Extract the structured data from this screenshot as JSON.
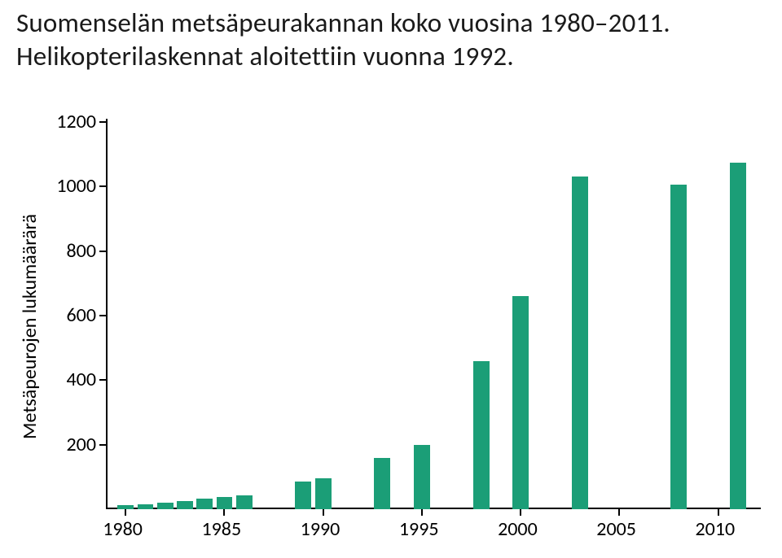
{
  "title_line1": "Suomenselän metsäpeurakannan koko vuosina 1980–2011.",
  "title_line2": "Helikopterilaskennat aloitettiin vuonna 1992.",
  "chart": {
    "type": "bar",
    "ylabel": "Metsäpeurojen lukumäärärä",
    "ylabel_fontsize": 24,
    "ylim": [
      0,
      1200
    ],
    "ytick_step": 200,
    "yticks": [
      200,
      400,
      600,
      800,
      1000,
      1200
    ],
    "xlim": [
      1979,
      2012
    ],
    "xticks": [
      1980,
      1985,
      1990,
      1995,
      2000,
      2005,
      2010
    ],
    "tick_fontsize": 24,
    "bar_color": "#1b9e77",
    "background_color": "#ffffff",
    "axis_color": "#000000",
    "axis_width": 2,
    "bar_width_years": 0.82,
    "data": [
      {
        "year": 1980,
        "value": 12
      },
      {
        "year": 1981,
        "value": 14
      },
      {
        "year": 1982,
        "value": 20
      },
      {
        "year": 1983,
        "value": 25
      },
      {
        "year": 1984,
        "value": 34
      },
      {
        "year": 1985,
        "value": 38
      },
      {
        "year": 1986,
        "value": 42
      },
      {
        "year": 1989,
        "value": 85
      },
      {
        "year": 1990,
        "value": 95
      },
      {
        "year": 1993,
        "value": 160
      },
      {
        "year": 1995,
        "value": 200
      },
      {
        "year": 1998,
        "value": 460
      },
      {
        "year": 2000,
        "value": 660
      },
      {
        "year": 2003,
        "value": 1030
      },
      {
        "year": 2008,
        "value": 1005
      },
      {
        "year": 2011,
        "value": 1075
      }
    ]
  }
}
